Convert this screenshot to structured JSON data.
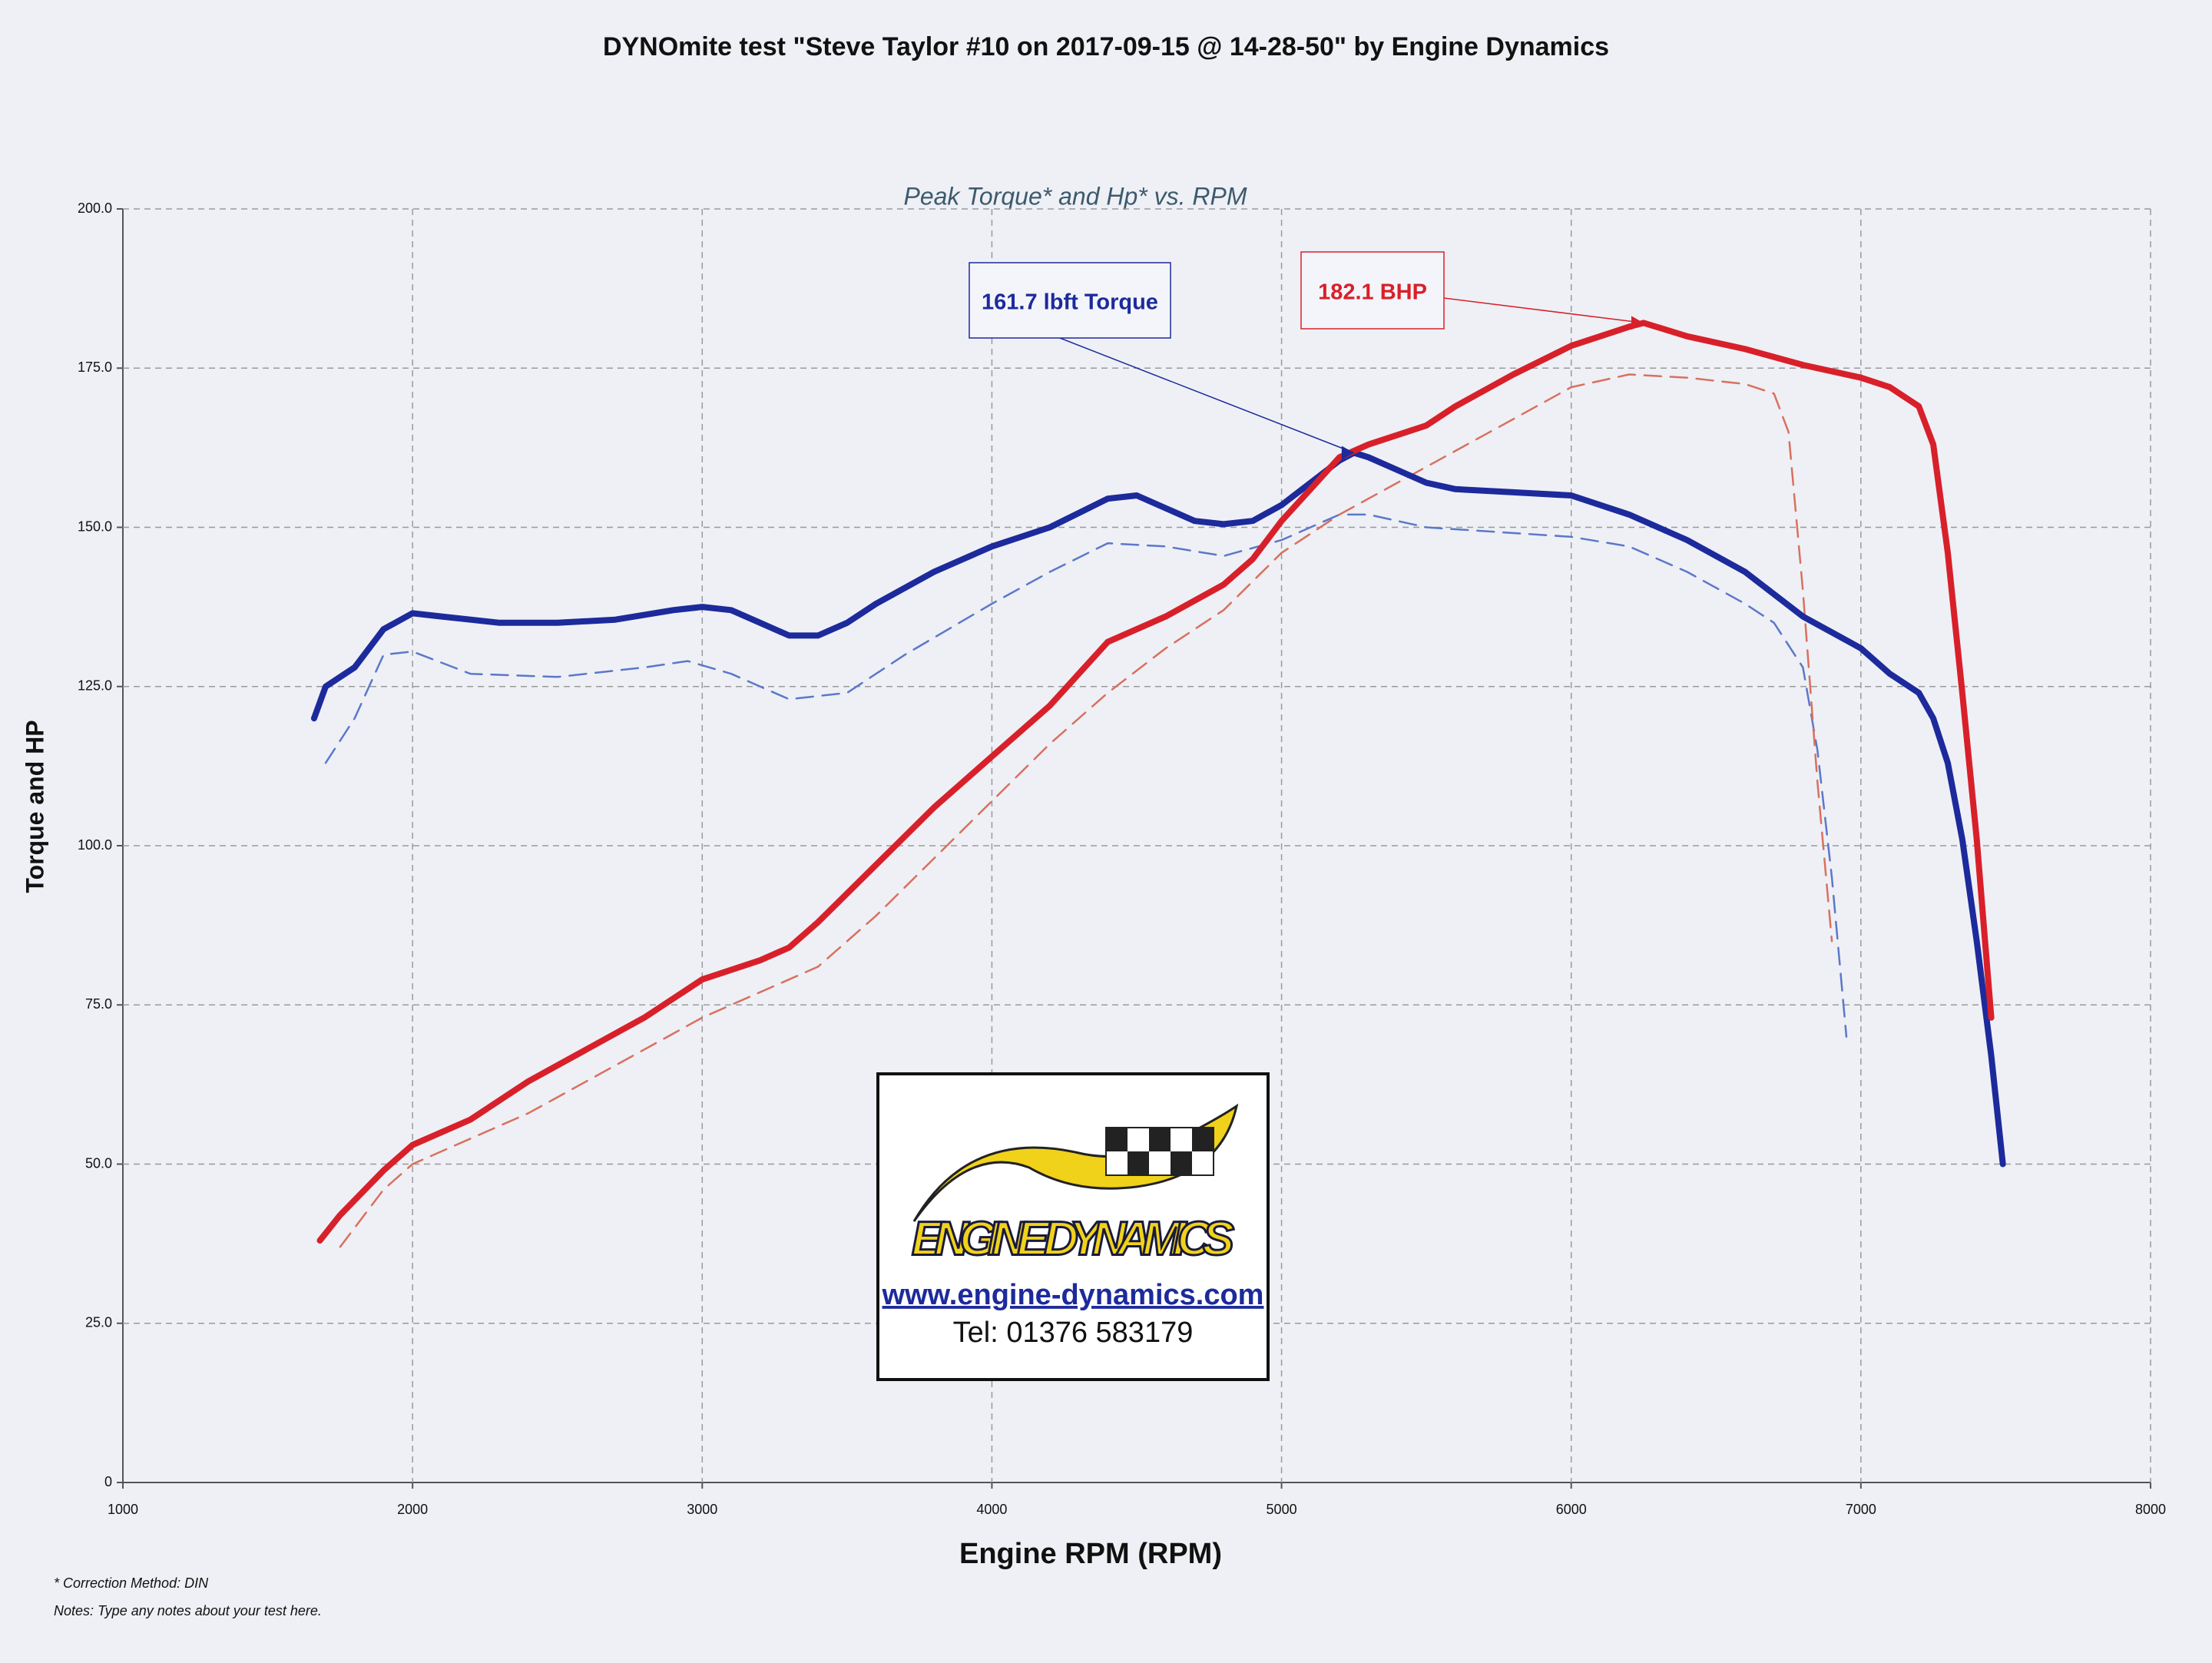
{
  "chart_data": {
    "type": "line",
    "title": "DYNOmite test \"Steve Taylor #10 on 2017-09-15 @ 14-28-50\" by Engine Dynamics",
    "subtitle": "Peak Torque* and Hp* vs. RPM",
    "x_label": "Engine RPM (RPM)",
    "y_label": "Torque and HP",
    "xlim": [
      1000,
      8000
    ],
    "xticks": [
      1000,
      2000,
      3000,
      4000,
      5000,
      6000,
      7000,
      8000
    ],
    "ylim": [
      0,
      200
    ],
    "yticks": [
      {
        "value": 200,
        "label": "200.0"
      },
      {
        "value": 175,
        "label": "175.0"
      },
      {
        "value": 150,
        "label": "150.0"
      },
      {
        "value": 125,
        "label": "125.0"
      },
      {
        "value": 100,
        "label": "100.0"
      },
      {
        "value": 75,
        "label": "75.0"
      },
      {
        "value": 50,
        "label": "50.0"
      },
      {
        "value": 25,
        "label": "25.0"
      },
      0
    ],
    "grid": true,
    "series": [
      {
        "color": "#1d2a9c",
        "dash": false,
        "x": [
          1660,
          1700,
          1800,
          1900,
          2000,
          2100,
          2200,
          2300,
          2500,
          2700,
          2900,
          3000,
          3100,
          3200,
          3300,
          3400,
          3500,
          3600,
          3800,
          4000,
          4200,
          4400,
          4500,
          4600,
          4700,
          4800,
          4900,
          5000,
          5100,
          5200,
          5250,
          5300,
          5400,
          5500,
          5600,
          5800,
          6000,
          6200,
          6400,
          6600,
          6800,
          7000,
          7100,
          7200,
          7250,
          7300,
          7350,
          7400,
          7450,
          7490
        ],
        "values": [
          120,
          125,
          128,
          134,
          136.5,
          136,
          135.5,
          135,
          135,
          135.5,
          137,
          137.5,
          137,
          135,
          133,
          133,
          135,
          138,
          143,
          147,
          150,
          154.5,
          155,
          153,
          151,
          150.5,
          151,
          153.5,
          157,
          160.5,
          161.7,
          161,
          159,
          157,
          156,
          155.5,
          155,
          152,
          148,
          143,
          136,
          131,
          127,
          124,
          120,
          113,
          101,
          85,
          67,
          50
        ]
      },
      {
        "color": "#d8202a",
        "dash": false,
        "x": [
          1680,
          1750,
          1900,
          2000,
          2200,
          2400,
          2600,
          2800,
          3000,
          3200,
          3300,
          3400,
          3600,
          3800,
          4000,
          4200,
          4400,
          4600,
          4800,
          4900,
          5000,
          5100,
          5200,
          5300,
          5500,
          5600,
          5800,
          6000,
          6200,
          6250,
          6400,
          6600,
          6800,
          7000,
          7100,
          7200,
          7250,
          7300,
          7350,
          7400,
          7450
        ],
        "values": [
          38,
          42,
          49,
          53,
          57,
          63,
          68,
          73,
          79,
          82,
          84,
          88,
          97,
          106,
          114,
          122,
          132,
          136,
          141,
          145,
          151,
          156,
          161,
          163,
          166,
          169,
          174,
          178.5,
          181.5,
          182.1,
          180,
          178,
          175.5,
          173.5,
          172,
          169,
          163,
          146,
          124,
          101,
          73
        ]
      },
      {
        "color": "#5b78c9",
        "dash": true,
        "x": [
          1700,
          1800,
          1900,
          2000,
          2200,
          2500,
          2800,
          2950,
          3100,
          3300,
          3500,
          3700,
          4000,
          4200,
          4400,
          4600,
          4800,
          5000,
          5200,
          5300,
          5500,
          6000,
          6200,
          6400,
          6600,
          6700,
          6800,
          6850,
          6900,
          6950
        ],
        "values": [
          113,
          120,
          130,
          130.5,
          127,
          126.5,
          128,
          129,
          127,
          123,
          124,
          130,
          138,
          143,
          147.5,
          147,
          145.5,
          148,
          152,
          152,
          150,
          148.5,
          147,
          143,
          138,
          135,
          128,
          115,
          95,
          70
        ]
      },
      {
        "color": "#d9705f",
        "dash": true,
        "x": [
          1750,
          1900,
          2000,
          2400,
          2800,
          3000,
          3200,
          3400,
          3600,
          3800,
          4000,
          4200,
          4400,
          4600,
          4800,
          5000,
          5200,
          5400,
          5600,
          5800,
          6000,
          6200,
          6400,
          6600,
          6700,
          6750,
          6800,
          6850,
          6900
        ],
        "values": [
          37,
          46,
          50,
          58,
          68,
          73,
          77,
          81,
          89,
          98,
          107,
          116,
          124,
          131,
          137,
          146,
          152,
          157,
          162,
          167,
          172,
          174,
          173.5,
          172.5,
          171,
          165,
          140,
          110,
          85
        ]
      }
    ],
    "annotations": [
      {
        "text": "161.7 lbft Torque",
        "x": 5250,
        "y": 161.7,
        "color": "#1d2a9c"
      },
      {
        "text": "182.1 BHP",
        "x": 6250,
        "y": 182.1,
        "color": "#d8202a"
      }
    ],
    "logo": {
      "name": "ENGINE DYNAMICS",
      "url": "www.engine-dynamics.com",
      "phone": "Tel: 01376 583179"
    },
    "footnotes": [
      "* Correction Method: DIN",
      "Notes: Type any notes about your test here."
    ]
  }
}
